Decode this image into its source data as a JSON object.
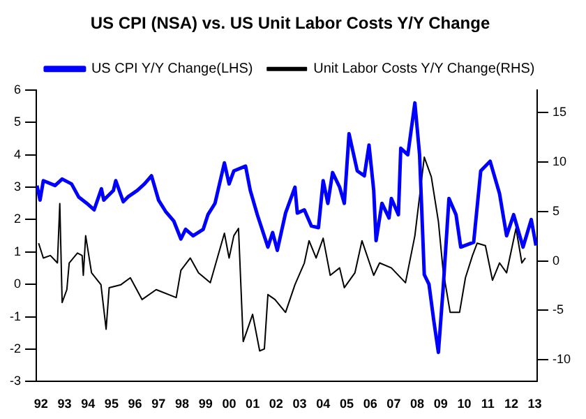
{
  "chart_data": {
    "type": "line",
    "title": "US CPI (NSA) vs. US Unit Labor Costs Y/Y Change",
    "xlim": [
      1991.8,
      2013.1
    ],
    "xticks": [
      {
        "value": 1992,
        "label": "92"
      },
      {
        "value": 1993,
        "label": "93"
      },
      {
        "value": 1994,
        "label": "94"
      },
      {
        "value": 1995,
        "label": "95"
      },
      {
        "value": 1996,
        "label": "96"
      },
      {
        "value": 1997,
        "label": "97"
      },
      {
        "value": 1998,
        "label": "98"
      },
      {
        "value": 1999,
        "label": "99"
      },
      {
        "value": 2000,
        "label": "00"
      },
      {
        "value": 2001,
        "label": "01"
      },
      {
        "value": 2002,
        "label": "02"
      },
      {
        "value": 2003,
        "label": "03"
      },
      {
        "value": 2004,
        "label": "04"
      },
      {
        "value": 2005,
        "label": "05"
      },
      {
        "value": 2006,
        "label": "06"
      },
      {
        "value": 2007,
        "label": "07"
      },
      {
        "value": 2008,
        "label": "08"
      },
      {
        "value": 2009,
        "label": "09"
      },
      {
        "value": 2010,
        "label": "10"
      },
      {
        "value": 2011,
        "label": "11"
      },
      {
        "value": 2012,
        "label": "12"
      },
      {
        "value": 2013,
        "label": "13"
      }
    ],
    "ylim": [
      -3,
      6
    ],
    "yticks": [
      -3,
      -2,
      -1,
      0,
      1,
      2,
      3,
      4,
      5,
      6
    ],
    "y2lim": [
      -12.2,
      17.3
    ],
    "y2ticks": [
      -10,
      -5,
      0,
      5,
      10,
      15
    ],
    "grid": false,
    "legend": "top",
    "marker": "none",
    "line_style": "solid",
    "series": [
      {
        "name": "US CPI Y/Y Change(LHS)",
        "color": "#0000ff",
        "x": [
          1991.83,
          1991.96,
          1992.1,
          1992.6,
          1992.9,
          1993.3,
          1993.6,
          1993.95,
          1994.26,
          1994.57,
          1994.67,
          1995.08,
          1995.18,
          1995.5,
          1995.7,
          1996.1,
          1996.4,
          1996.7,
          1997.0,
          1997.3,
          1997.65,
          1997.95,
          1998.15,
          1998.47,
          1998.9,
          1999.1,
          1999.4,
          1999.8,
          2000.0,
          2000.2,
          2000.7,
          2000.9,
          2001.2,
          2001.65,
          2001.85,
          2002.05,
          2002.4,
          2002.8,
          2002.9,
          2003.2,
          2003.5,
          2003.8,
          2004.0,
          2004.2,
          2004.4,
          2004.7,
          2004.9,
          2005.1,
          2005.45,
          2005.75,
          2005.95,
          2006.15,
          2006.25,
          2006.5,
          2006.8,
          2006.9,
          2007.2,
          2007.3,
          2007.6,
          2007.9,
          2008.1,
          2008.3,
          2008.5,
          2008.7,
          2008.9,
          2009.1,
          2009.35,
          2009.65,
          2009.85,
          2010.4,
          2010.7,
          2011.1,
          2011.5,
          2011.8,
          2012.1,
          2012.5,
          2012.85,
          2013.05
        ],
        "values": [
          3.05,
          2.6,
          3.2,
          3.05,
          3.25,
          3.1,
          2.7,
          2.5,
          2.3,
          2.95,
          2.6,
          2.9,
          3.2,
          2.55,
          2.7,
          2.9,
          3.1,
          3.35,
          2.6,
          2.25,
          1.95,
          1.4,
          1.7,
          1.5,
          1.7,
          2.15,
          2.5,
          3.75,
          3.1,
          3.5,
          3.65,
          2.9,
          2.15,
          1.15,
          1.6,
          1.05,
          2.2,
          3.0,
          2.2,
          2.3,
          1.8,
          1.75,
          3.2,
          2.5,
          3.45,
          3.0,
          2.5,
          4.65,
          3.5,
          3.35,
          4.3,
          2.9,
          1.35,
          2.5,
          2.05,
          2.65,
          2.15,
          4.2,
          4.0,
          5.6,
          4.0,
          0.3,
          0.0,
          -1.1,
          -2.1,
          -0.15,
          2.65,
          2.15,
          1.15,
          1.3,
          3.5,
          3.8,
          2.8,
          1.5,
          2.15,
          1.15,
          2.0,
          1.2
        ]
      },
      {
        "name": "Unit Labor Costs Y/Y Change(RHS)",
        "color": "#000000",
        "axis": "y2",
        "x": [
          1991.9,
          1992.1,
          1992.4,
          1992.6,
          1992.7,
          1992.8,
          1992.9,
          1993.1,
          1993.2,
          1993.55,
          1993.75,
          1993.8,
          1993.9,
          1994.15,
          1994.55,
          1994.77,
          1994.9,
          1995.4,
          1995.8,
          1996.3,
          1996.9,
          1997.75,
          1997.95,
          1998.35,
          1998.7,
          1999.2,
          1999.8,
          2000.0,
          2000.2,
          2000.4,
          2000.6,
          2001.0,
          2001.3,
          2001.5,
          2001.65,
          2001.95,
          2002.4,
          2002.8,
          2003.2,
          2003.4,
          2003.7,
          2004.0,
          2004.3,
          2004.7,
          2004.9,
          2005.35,
          2005.65,
          2006.15,
          2006.4,
          2006.9,
          2007.5,
          2007.9,
          2008.3,
          2008.6,
          2008.9,
          2009.1,
          2009.4,
          2009.8,
          2010.05,
          2010.35,
          2010.55,
          2010.9,
          2011.2,
          2011.5,
          2011.8,
          2012.2,
          2012.45,
          2012.6
        ],
        "values": [
          1.8,
          0.3,
          0.55,
          0.05,
          -0.2,
          5.8,
          -4.2,
          -2.9,
          -0.2,
          0.8,
          0.55,
          -1.45,
          2.55,
          -1.2,
          -2.4,
          -6.9,
          -2.7,
          -2.4,
          -1.7,
          -3.9,
          -2.9,
          -3.7,
          -0.95,
          0.3,
          -1.2,
          -2.2,
          2.8,
          0.3,
          2.55,
          3.3,
          -8.15,
          -5.4,
          -9.1,
          -8.9,
          -3.4,
          -3.9,
          -5.2,
          -2.4,
          -0.2,
          2.05,
          0.3,
          2.3,
          -1.45,
          -0.7,
          -2.7,
          -1.2,
          2.05,
          -1.45,
          -0.2,
          -0.7,
          -2.2,
          2.55,
          10.5,
          8.5,
          4.0,
          -0.95,
          -5.2,
          -5.2,
          -1.7,
          0.55,
          1.8,
          1.55,
          -1.95,
          -0.2,
          -1.2,
          3.3,
          -0.2,
          0.3
        ]
      }
    ]
  }
}
